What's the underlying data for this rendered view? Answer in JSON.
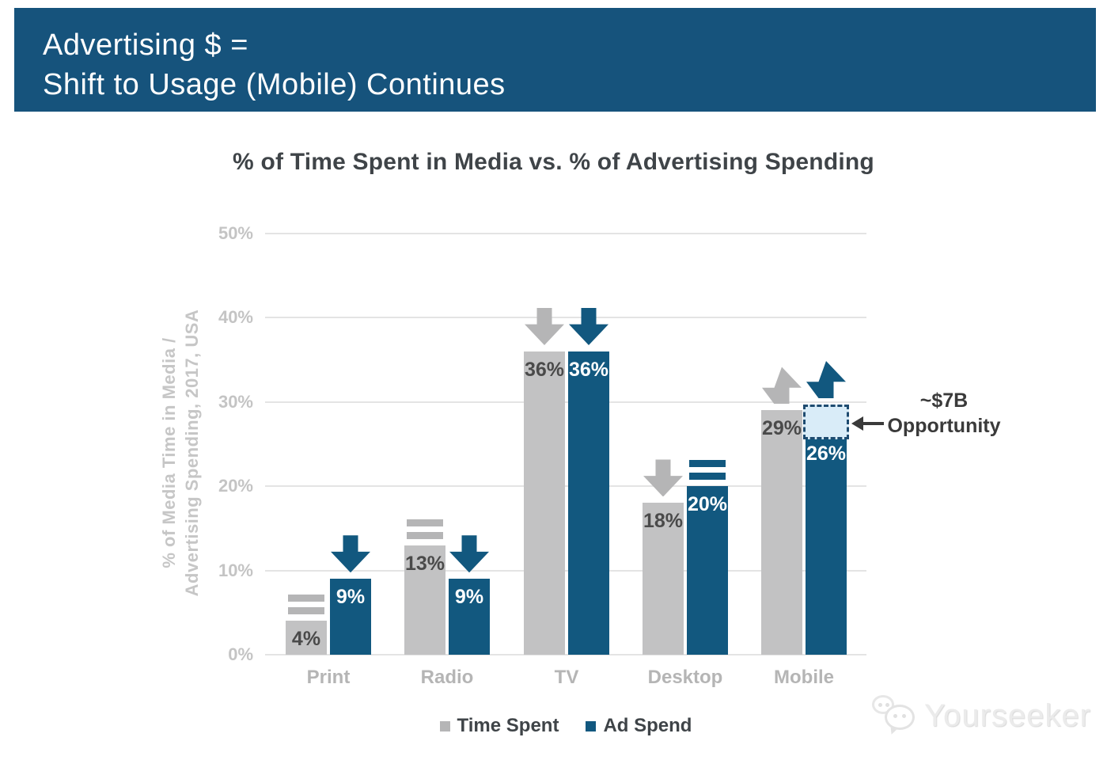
{
  "banner": {
    "line1": "Advertising $ =",
    "line2": "Shift to Usage (Mobile) Continues",
    "bg_color": "#16537c",
    "text_color": "#ffffff"
  },
  "chart_data": {
    "type": "bar",
    "title": "% of Time Spent in Media vs. % of Advertising Spending",
    "ylabel_line1": "% of Media Time in Media /",
    "ylabel_line2": "Advertising Spending, 2017, USA",
    "categories": [
      "Print",
      "Radio",
      "TV",
      "Desktop",
      "Mobile"
    ],
    "series": [
      {
        "name": "Time Spent",
        "color": "#c2c2c3",
        "indicator_color": "#b5b5b6",
        "label_color": "#4a4a4a",
        "values": [
          4,
          13,
          36,
          18,
          29
        ],
        "data_labels": [
          "4%",
          "13%",
          "36%",
          "18%",
          "29%"
        ],
        "indicators": [
          "equal",
          "equal",
          "down",
          "down",
          "up"
        ]
      },
      {
        "name": "Ad Spend",
        "color": "#12587f",
        "indicator_color": "#12587f",
        "label_color": "#ffffff",
        "values": [
          9,
          9,
          36,
          20,
          26
        ],
        "data_labels": [
          "9%",
          "9%",
          "36%",
          "20%",
          "26%"
        ],
        "indicators": [
          "down",
          "down",
          "down",
          "equal",
          "up"
        ]
      }
    ],
    "y_ticks": [
      "0%",
      "10%",
      "20%",
      "30%",
      "40%",
      "50%"
    ],
    "ylim": [
      0,
      50
    ],
    "grid": true,
    "legend_position": "bottom",
    "annotation": {
      "line1": "~$7B",
      "line2": "Opportunity",
      "target_category": "Mobile",
      "target_series": "Ad Spend",
      "box_from_pct": 26,
      "box_to_pct": 29.7,
      "box_fill": "#d9ecf8",
      "box_border": "#1e4b70"
    }
  },
  "watermark": {
    "text": "Yourseeker"
  }
}
